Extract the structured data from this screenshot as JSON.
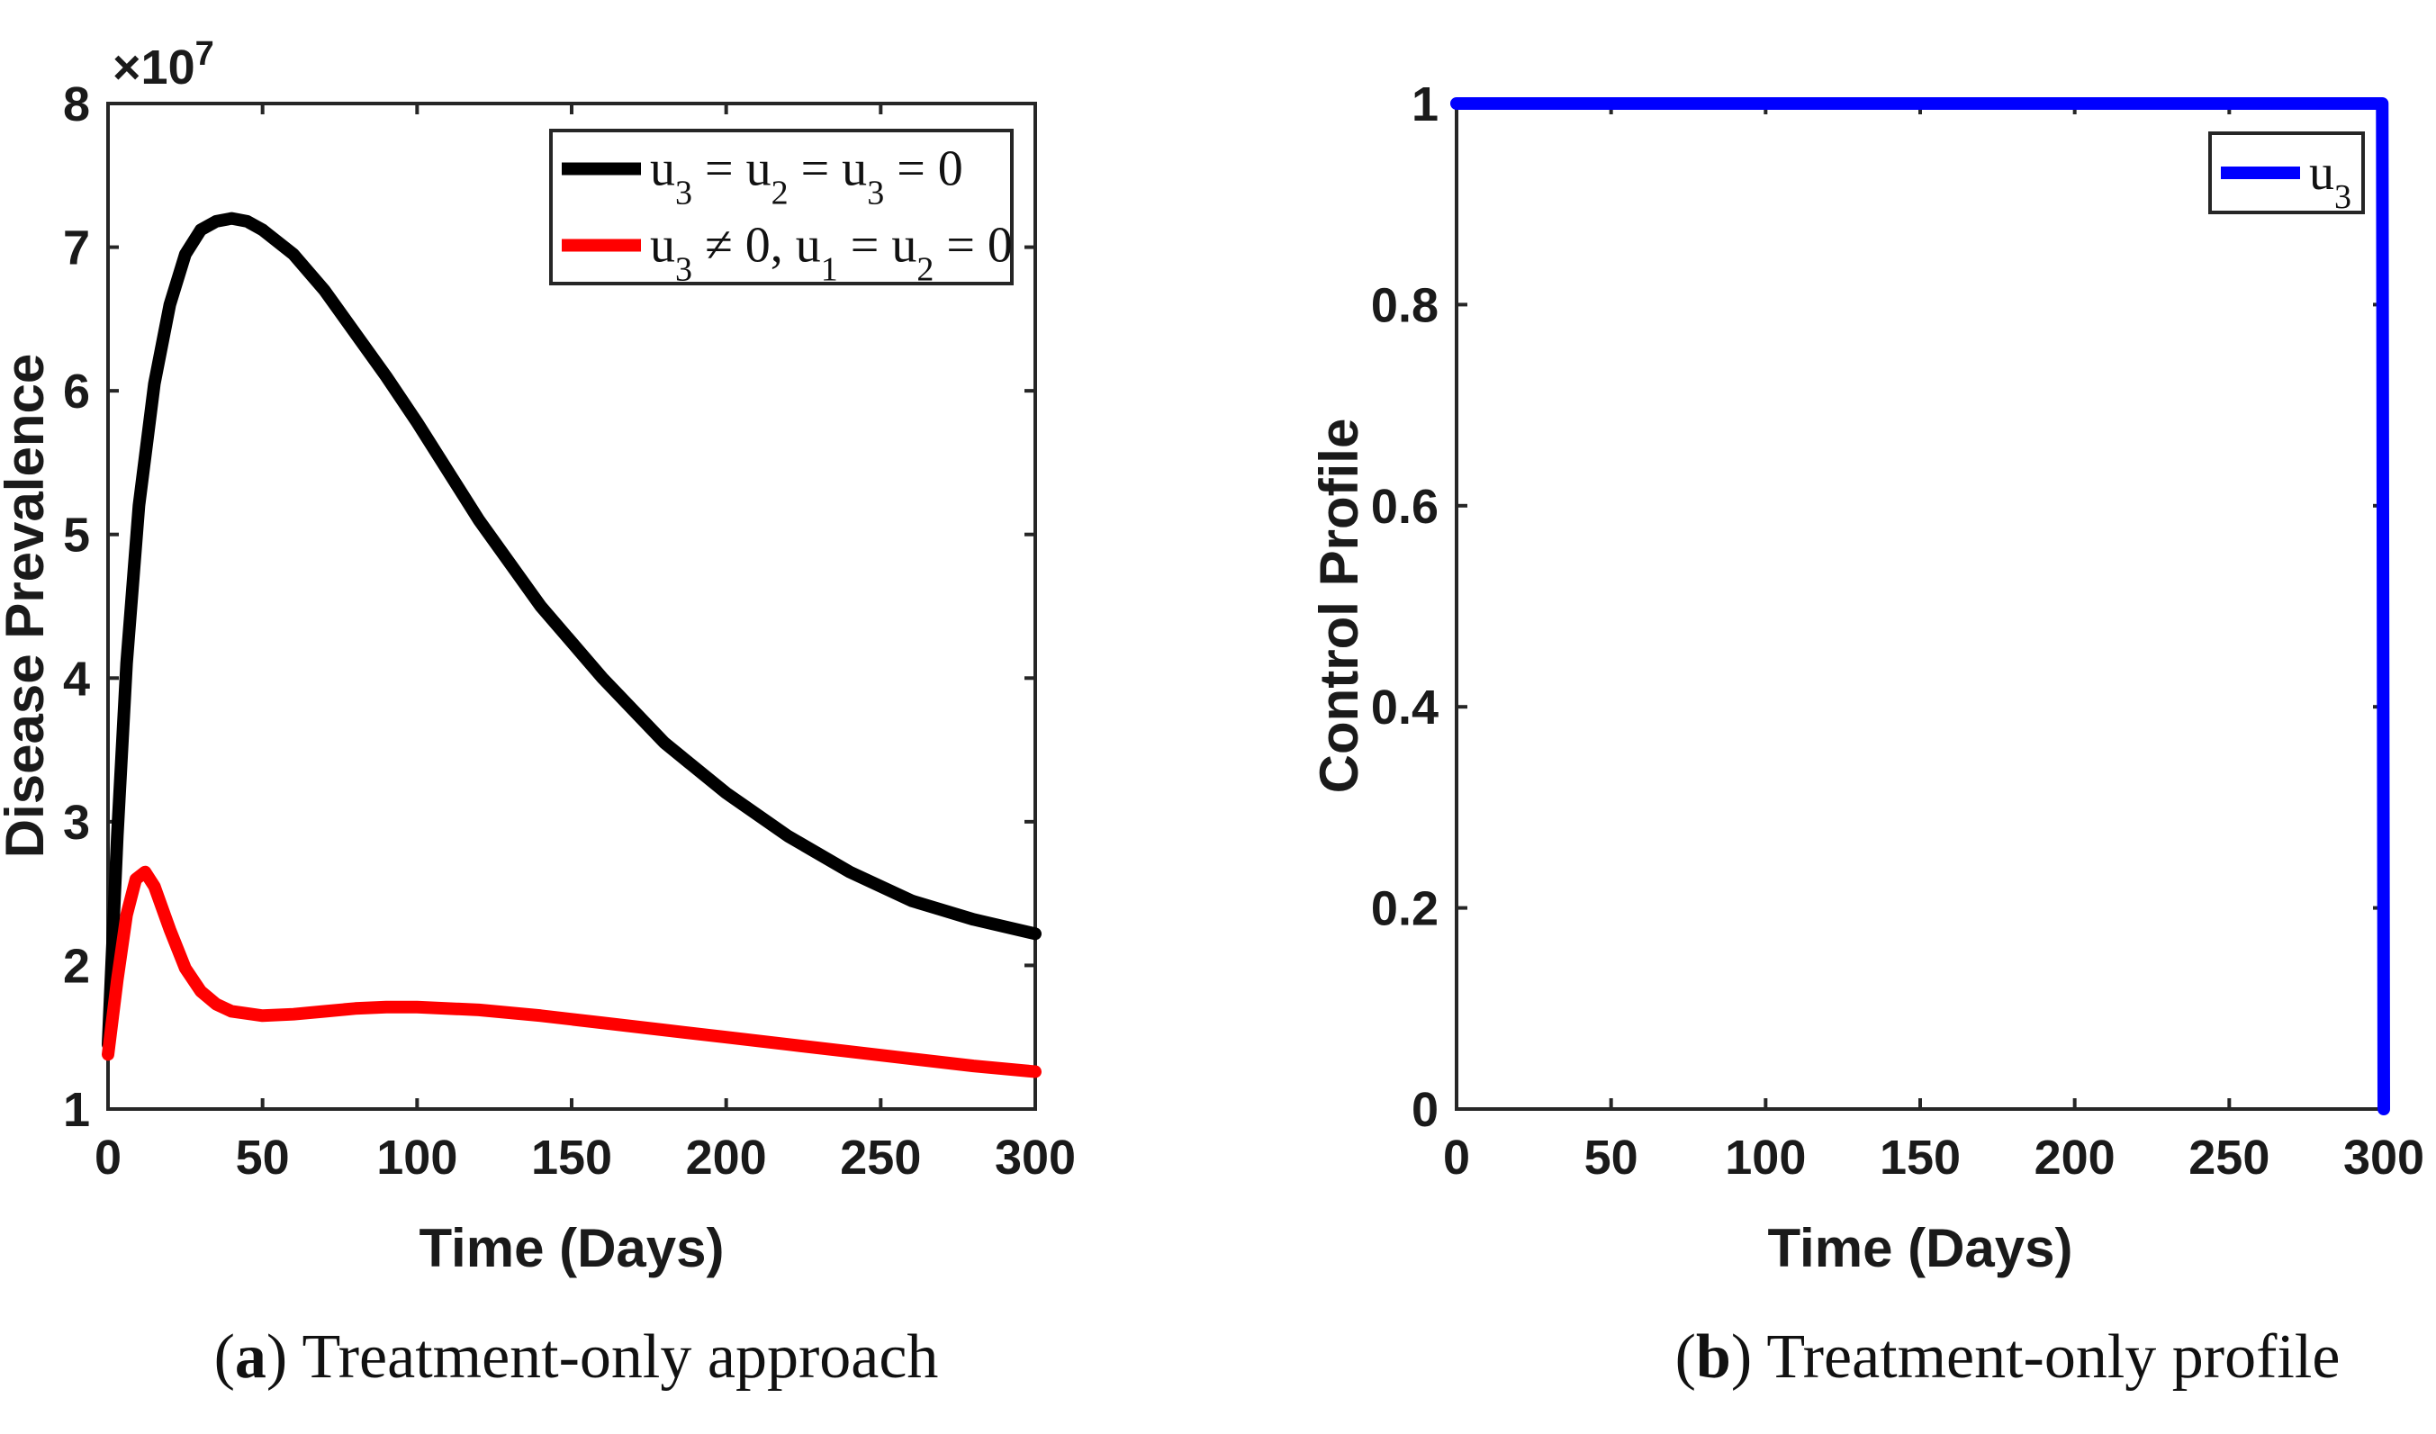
{
  "chart_data": [
    {
      "type": "line",
      "caption_letter": "a",
      "caption_text": "Treatment-only approach",
      "xlabel": "Time (Days)",
      "ylabel": "Disease Prevalence",
      "y_exponent_label": "×10",
      "y_exponent_power": "7",
      "xlim": [
        0,
        300
      ],
      "ylim": [
        1,
        8
      ],
      "xticks": [
        0,
        50,
        100,
        150,
        200,
        250,
        300
      ],
      "yticks": [
        1,
        2,
        3,
        4,
        5,
        6,
        7,
        8
      ],
      "legend_position": "top-right",
      "series": [
        {
          "name": "u3 = u2 = u3 = 0",
          "legend_html": "u<tspan baseline-shift='sub' font-size='38'>3</tspan> = u<tspan baseline-shift='sub' font-size='38'>2</tspan> = u<tspan baseline-shift='sub' font-size='38'>3</tspan> = 0",
          "color": "#000000",
          "x": [
            0,
            3,
            6,
            10,
            15,
            20,
            25,
            30,
            35,
            40,
            45,
            50,
            60,
            70,
            80,
            90,
            100,
            120,
            140,
            160,
            180,
            200,
            220,
            240,
            260,
            280,
            300
          ],
          "y": [
            1.45,
            2.9,
            4.1,
            5.2,
            6.05,
            6.6,
            6.95,
            7.12,
            7.18,
            7.2,
            7.18,
            7.12,
            6.95,
            6.7,
            6.4,
            6.1,
            5.78,
            5.1,
            4.5,
            4.0,
            3.55,
            3.2,
            2.9,
            2.65,
            2.45,
            2.32,
            2.22
          ]
        },
        {
          "name": "u3 ≠ 0, u1 = u2 = 0",
          "legend_html": "u<tspan baseline-shift='sub' font-size='38'>3</tspan> ≠ 0, u<tspan baseline-shift='sub' font-size='38'>1</tspan> = u<tspan baseline-shift='sub' font-size='38'>2</tspan> = 0",
          "color": "#ff0000",
          "x": [
            0,
            3,
            6,
            9,
            12,
            15,
            20,
            25,
            30,
            35,
            40,
            50,
            60,
            70,
            80,
            90,
            100,
            120,
            140,
            160,
            180,
            200,
            220,
            240,
            260,
            280,
            300
          ],
          "y": [
            1.38,
            1.9,
            2.35,
            2.6,
            2.65,
            2.55,
            2.25,
            1.98,
            1.82,
            1.73,
            1.68,
            1.65,
            1.66,
            1.68,
            1.7,
            1.71,
            1.71,
            1.69,
            1.65,
            1.6,
            1.55,
            1.5,
            1.45,
            1.4,
            1.35,
            1.3,
            1.26
          ]
        }
      ]
    },
    {
      "type": "line",
      "caption_letter": "b",
      "caption_text": "Treatment-only profile",
      "xlabel": "Time (Days)",
      "ylabel": "Control Profile",
      "xlim": [
        0,
        300
      ],
      "ylim": [
        0,
        1
      ],
      "xticks": [
        0,
        50,
        100,
        150,
        200,
        250,
        300
      ],
      "yticks": [
        0,
        0.2,
        0.4,
        0.6,
        0.8,
        1
      ],
      "legend_position": "top-right",
      "series": [
        {
          "name": "u3",
          "legend_html": "u<tspan baseline-shift='sub' font-size='38'>3</tspan>",
          "color": "#0000ff",
          "x": [
            0,
            299.5,
            300
          ],
          "y": [
            1,
            1,
            0
          ]
        }
      ]
    }
  ]
}
